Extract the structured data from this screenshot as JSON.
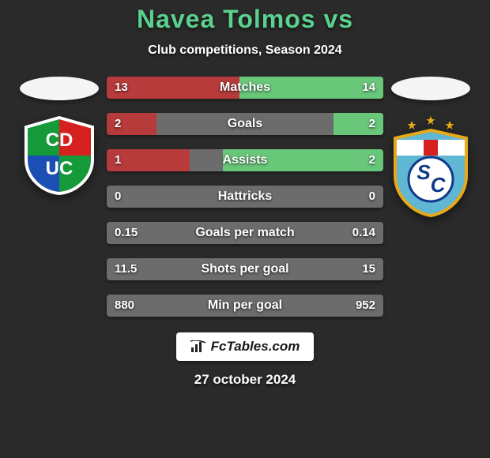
{
  "bg_color": "#2a2a2a",
  "title_text": "Navea Tolmos vs",
  "title_color": "#5bd18f",
  "subtitle_text": "Club competitions, Season 2024",
  "subtitle_color": "#ffffff",
  "date_text": "27 october 2024",
  "date_color": "#ffffff",
  "flag_left_color": "#f5f5f5",
  "flag_right_color": "#f5f5f5",
  "left_club": {
    "shield_bg": "#ffffff",
    "quad_tl": "#159a3a",
    "quad_tr": "#d61f1f",
    "quad_bl": "#1b4fb3",
    "quad_br": "#159a3a",
    "text_top": "CD",
    "text_bottom": "UC",
    "text_color": "#ffffff"
  },
  "right_club": {
    "shield_bg": "#5fb7d4",
    "border": "#e7a91a",
    "top_block": "#ffffff",
    "circle_fill": "#ffffff",
    "circle_border": "#0e3a8a",
    "letter_s": "S",
    "letter_c": "C",
    "letter_color": "#0e3a8a",
    "star_color": "#e7a91a"
  },
  "bars": {
    "track_color": "#6c6c6c",
    "left_color": "#b73b3b",
    "right_color": "#69c77a",
    "text_color": "#ffffff",
    "rows": [
      {
        "label": "Matches",
        "left_val": "13",
        "right_val": "14",
        "left_pct": 48,
        "right_pct": 52
      },
      {
        "label": "Goals",
        "left_val": "2",
        "right_val": "2",
        "left_pct": 18,
        "right_pct": 18
      },
      {
        "label": "Assists",
        "left_val": "1",
        "right_val": "2",
        "left_pct": 30,
        "right_pct": 58
      },
      {
        "label": "Hattricks",
        "left_val": "0",
        "right_val": "0",
        "left_pct": 0,
        "right_pct": 0
      },
      {
        "label": "Goals per match",
        "left_val": "0.15",
        "right_val": "0.14",
        "left_pct": 0,
        "right_pct": 0
      },
      {
        "label": "Shots per goal",
        "left_val": "11.5",
        "right_val": "15",
        "left_pct": 0,
        "right_pct": 0
      },
      {
        "label": "Min per goal",
        "left_val": "880",
        "right_val": "952",
        "left_pct": 0,
        "right_pct": 0
      }
    ]
  },
  "fct_label": "FcTables.com",
  "fct_text_color": "#181818",
  "fct_bg": "#ffffff"
}
